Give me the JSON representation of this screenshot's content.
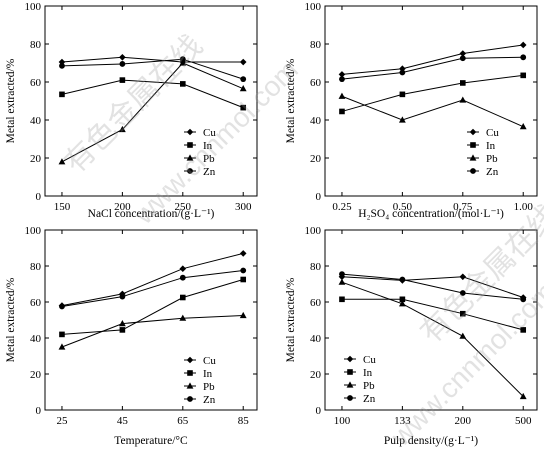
{
  "chart_data": [
    {
      "type": "line",
      "xlabel": "NaCl concentration/(g·L⁻¹)",
      "ylabel": "Metal extracted/%",
      "xcategories": [
        "150",
        "200",
        "250",
        "300"
      ],
      "ylim": [
        0,
        100
      ],
      "yticks": [
        0,
        20,
        40,
        60,
        80,
        100
      ],
      "legend_position": "bottom-right",
      "series": [
        {
          "name": "Cu",
          "marker": "diamond",
          "values": [
            70.5,
            73.0,
            70.5,
            70.5
          ]
        },
        {
          "name": "In",
          "marker": "square",
          "values": [
            53.5,
            61.0,
            59.0,
            46.5
          ]
        },
        {
          "name": "Pb",
          "marker": "triangle",
          "values": [
            18.0,
            35.0,
            70.0,
            56.5
          ]
        },
        {
          "name": "Zn",
          "marker": "circle",
          "values": [
            68.5,
            69.5,
            72.0,
            61.5
          ]
        }
      ]
    },
    {
      "type": "line",
      "xlabel": "H₂SO₄ concentration/(mol·L⁻¹)",
      "ylabel": "Metal extracted/%",
      "xcategories": [
        "0.25",
        "0.50",
        "0.75",
        "1.00"
      ],
      "ylim": [
        0,
        100
      ],
      "yticks": [
        0,
        20,
        40,
        60,
        80,
        100
      ],
      "legend_position": "bottom-right",
      "series": [
        {
          "name": "Cu",
          "marker": "diamond",
          "values": [
            64.0,
            67.0,
            75.0,
            79.5
          ]
        },
        {
          "name": "In",
          "marker": "square",
          "values": [
            44.5,
            53.5,
            59.5,
            63.5
          ]
        },
        {
          "name": "Pb",
          "marker": "triangle",
          "values": [
            52.5,
            40.0,
            50.5,
            36.5
          ]
        },
        {
          "name": "Zn",
          "marker": "circle",
          "values": [
            61.5,
            65.0,
            72.5,
            73.0
          ]
        }
      ]
    },
    {
      "type": "line",
      "xlabel": "Temperature/°C",
      "ylabel": "Metal extracted/%",
      "xcategories": [
        "25",
        "45",
        "65",
        "85"
      ],
      "ylim": [
        0,
        100
      ],
      "yticks": [
        0,
        20,
        40,
        60,
        80,
        100
      ],
      "legend_position": "bottom-right",
      "series": [
        {
          "name": "Cu",
          "marker": "diamond",
          "values": [
            58.0,
            64.5,
            78.5,
            87.0
          ]
        },
        {
          "name": "In",
          "marker": "square",
          "values": [
            42.0,
            44.5,
            62.5,
            72.5
          ]
        },
        {
          "name": "Pb",
          "marker": "triangle",
          "values": [
            35.0,
            48.0,
            51.0,
            52.5
          ]
        },
        {
          "name": "Zn",
          "marker": "circle",
          "values": [
            57.5,
            63.0,
            73.5,
            77.5
          ]
        }
      ]
    },
    {
      "type": "line",
      "xlabel": "Pulp density/(g·L⁻¹)",
      "ylabel": "Metal extracted/%",
      "xcategories": [
        "100",
        "133",
        "200",
        "500"
      ],
      "ylim": [
        0,
        100
      ],
      "yticks": [
        0,
        20,
        40,
        60,
        80,
        100
      ],
      "legend_position": "bottom-left",
      "series": [
        {
          "name": "Cu",
          "marker": "diamond",
          "values": [
            74.0,
            72.0,
            74.0,
            62.5
          ]
        },
        {
          "name": "In",
          "marker": "square",
          "values": [
            61.5,
            61.5,
            53.5,
            44.5
          ]
        },
        {
          "name": "Pb",
          "marker": "triangle",
          "values": [
            71.0,
            59.0,
            41.0,
            7.5
          ]
        },
        {
          "name": "Zn",
          "marker": "circle",
          "values": [
            75.5,
            72.5,
            65.0,
            61.5
          ]
        }
      ]
    }
  ],
  "watermark": {
    "brand_cn": "有色金属在线",
    "url": "www.cnnmol.com"
  }
}
